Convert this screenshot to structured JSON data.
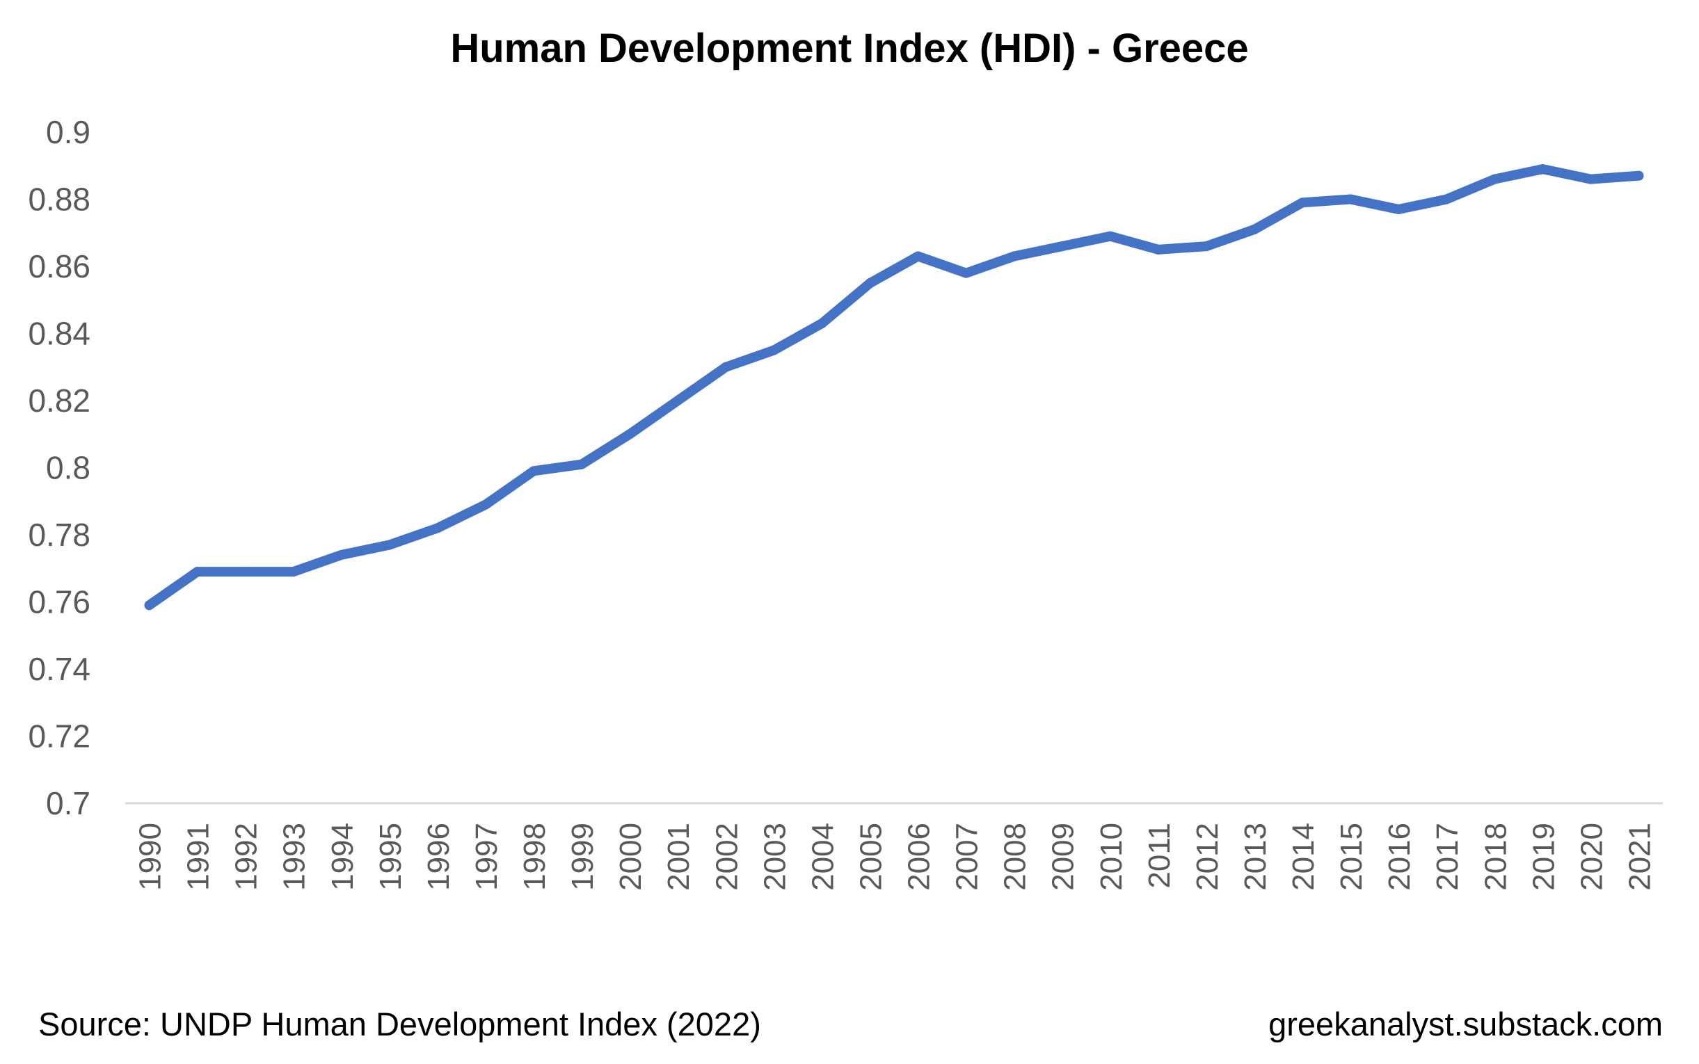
{
  "chart_data": {
    "type": "line",
    "title": "Human Development Index (HDI) - Greece",
    "xlabel": "",
    "ylabel": "",
    "ylim": [
      0.7,
      0.9
    ],
    "yticks": [
      "0.9",
      "0.88",
      "0.86",
      "0.84",
      "0.82",
      "0.8",
      "0.78",
      "0.76",
      "0.74",
      "0.72",
      "0.7"
    ],
    "grid": false,
    "legend": "none",
    "color": "#4472C4",
    "categories": [
      "1990",
      "1991",
      "1992",
      "1993",
      "1994",
      "1995",
      "1996",
      "1997",
      "1998",
      "1999",
      "2000",
      "2001",
      "2002",
      "2003",
      "2004",
      "2005",
      "2006",
      "2007",
      "2008",
      "2009",
      "2010",
      "2011",
      "2012",
      "2013",
      "2014",
      "2015",
      "2016",
      "2017",
      "2018",
      "2019",
      "2020",
      "2021"
    ],
    "series": [
      {
        "values": [
          0.759,
          0.769,
          0.769,
          0.769,
          0.774,
          0.777,
          0.782,
          0.789,
          0.799,
          0.801,
          0.81,
          0.82,
          0.83,
          0.835,
          0.843,
          0.855,
          0.863,
          0.858,
          0.863,
          0.866,
          0.869,
          0.865,
          0.866,
          0.871,
          0.879,
          0.88,
          0.877,
          0.88,
          0.886,
          0.889,
          0.886,
          0.887
        ]
      }
    ]
  },
  "footer": {
    "source": "Source: UNDP Human Development Index (2022)",
    "site": "greekanalyst.substack.com"
  }
}
